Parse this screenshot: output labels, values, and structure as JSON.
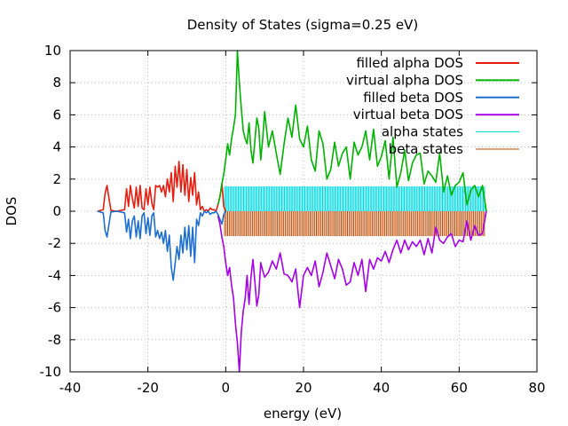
{
  "chart_data": {
    "type": "line",
    "title": "Density of States (sigma=0.25 eV)",
    "xlabel": "energy (eV)",
    "ylabel": "DOS",
    "xlim": [
      -40,
      80
    ],
    "ylim": [
      -10,
      10
    ],
    "x_ticks": [
      -40,
      -20,
      0,
      20,
      40,
      60,
      80
    ],
    "y_ticks": [
      -10,
      -8,
      -6,
      -4,
      -2,
      0,
      2,
      4,
      6,
      8,
      10
    ],
    "x_tick_labels": [
      "-40",
      "-20",
      "0",
      "20",
      "40",
      "60",
      "80"
    ],
    "y_tick_labels": [
      "-10",
      "-8",
      "-6",
      "-4",
      "-2",
      "0",
      "2",
      "4",
      "6",
      "8",
      "10"
    ],
    "grid": true,
    "legend_position": "top-right",
    "series": [
      {
        "name": "filled alpha DOS",
        "color": "#e51e10",
        "x": [
          -33,
          -31.5,
          -31,
          -30.5,
          -30,
          -29.5,
          -28,
          -26,
          -25.5,
          -25,
          -24.5,
          -24,
          -23.5,
          -23,
          -22.5,
          -22,
          -21.5,
          -21,
          -20.5,
          -20,
          -19.5,
          -19,
          -18.5,
          -18,
          -17.5,
          -17,
          -16.5,
          -16,
          -15.5,
          -15,
          -14.5,
          -14,
          -13.5,
          -13,
          -12.5,
          -12,
          -11.5,
          -11,
          -10.5,
          -10,
          -9.5,
          -9,
          -8.5,
          -8,
          -7.5,
          -7,
          -6.5,
          -6,
          -5.5,
          -5,
          -4.5,
          -4,
          -3.5,
          -3,
          -2.5,
          -2,
          -1.5,
          -1,
          -0.5,
          0
        ],
        "y": [
          0,
          0.1,
          1.1,
          1.6,
          0.8,
          0.05,
          0,
          0.1,
          1.4,
          0.3,
          1.6,
          0.8,
          0.2,
          1.5,
          0.3,
          1.6,
          0.2,
          0.1,
          1.4,
          0.4,
          1.5,
          0.5,
          0.1,
          1.6,
          1.5,
          1.6,
          1.2,
          1.6,
          0.9,
          2.0,
          1.2,
          2.4,
          0.6,
          2.8,
          1.5,
          3.1,
          1.2,
          2.9,
          1.0,
          2.6,
          0.6,
          2.1,
          1.0,
          2.4,
          0.4,
          1.2,
          0.1,
          0.3,
          0,
          0.1,
          0,
          0.2,
          0.1,
          0.1,
          0,
          0.4,
          0.9,
          1.7,
          0.3,
          0
        ]
      },
      {
        "name": "virtual alpha DOS",
        "color": "#00b200",
        "x": [
          -2,
          -1.5,
          -1,
          -0.5,
          0,
          0.5,
          1,
          1.5,
          2,
          2.5,
          3,
          3.5,
          4,
          4.5,
          5,
          5.5,
          6,
          6.5,
          7,
          7.5,
          8,
          8.5,
          9,
          9.5,
          10,
          11,
          12,
          13,
          14,
          15,
          16,
          17,
          18,
          19,
          20,
          21,
          22,
          23,
          24,
          25,
          26,
          27,
          28,
          29,
          30,
          31,
          32,
          33,
          34,
          35,
          36,
          37,
          38,
          39,
          40,
          41,
          42,
          43,
          44,
          45,
          46,
          47,
          48,
          49,
          50,
          51,
          52,
          53,
          54,
          55,
          56,
          57,
          58,
          59,
          60,
          61,
          62,
          63,
          64,
          65,
          66,
          67
        ],
        "y": [
          0.4,
          0.9,
          1.7,
          2.3,
          3.2,
          4.2,
          3.5,
          4.5,
          5.2,
          6.0,
          10.0,
          8.0,
          6.4,
          5.0,
          4.5,
          4.2,
          5.5,
          3.8,
          3.0,
          4.4,
          5.8,
          5.2,
          3.2,
          4.5,
          6.2,
          4.0,
          5.0,
          3.6,
          2.3,
          4.2,
          5.8,
          4.6,
          6.6,
          4.5,
          4.0,
          5.3,
          3.2,
          2.5,
          5.0,
          4.2,
          2.0,
          2.6,
          4.3,
          2.8,
          3.6,
          4.0,
          2.0,
          4.3,
          3.5,
          4.0,
          5.0,
          3.2,
          5.1,
          2.8,
          3.4,
          4.4,
          2.0,
          4.6,
          1.5,
          2.4,
          3.8,
          1.9,
          3.0,
          3.5,
          3.6,
          1.7,
          2.5,
          2.2,
          1.8,
          3.6,
          1.2,
          2.2,
          1.0,
          1.6,
          1.8,
          2.4,
          0.4,
          1.3,
          1.6,
          0.9,
          1.6,
          0
        ]
      },
      {
        "name": "filled beta DOS",
        "color": "#1e6fd0",
        "x": [
          -33,
          -31.5,
          -31,
          -30.5,
          -30,
          -29.5,
          -28,
          -26,
          -25.5,
          -25,
          -24.5,
          -24,
          -23.5,
          -23,
          -22.5,
          -22,
          -21.5,
          -21,
          -20.5,
          -20,
          -19.5,
          -19,
          -18.5,
          -18,
          -17.5,
          -17,
          -16.5,
          -16,
          -15.5,
          -15,
          -14.5,
          -14,
          -13.5,
          -13,
          -12.5,
          -12,
          -11.5,
          -11,
          -10.5,
          -10,
          -9.5,
          -9,
          -8.5,
          -8,
          -7.5,
          -7,
          -6.5,
          -6,
          -5.5,
          -5,
          -4.5,
          -4,
          -3.5,
          -3,
          -2.5,
          -2,
          -1.5,
          -1,
          -0.5,
          0
        ],
        "y": [
          0,
          -0.1,
          -1.2,
          -1.6,
          -0.8,
          -0.05,
          0,
          -0.1,
          -1.3,
          -0.5,
          -1.7,
          -0.6,
          -0.3,
          -1.6,
          -0.6,
          -1.7,
          -0.3,
          -0.1,
          -1.4,
          -0.4,
          -1.5,
          -0.3,
          -0.1,
          -1.6,
          -1.2,
          -1.7,
          -1.3,
          -2.0,
          -1.2,
          -2.5,
          -1.5,
          -3.5,
          -4.3,
          -3.2,
          -2.2,
          -3.0,
          -1.5,
          -2.6,
          -1.0,
          -2.4,
          -0.9,
          -2.8,
          -1.0,
          -3.2,
          -0.5,
          -0.9,
          -0.1,
          -0.3,
          0,
          -0.1,
          0,
          -0.2,
          -0.1,
          -0.1,
          0,
          -0.2,
          -0.5,
          -0.8,
          -0.2,
          0
        ]
      },
      {
        "name": "virtual beta DOS",
        "color": "#a500e6",
        "x": [
          -2,
          -1.5,
          -1,
          -0.5,
          0,
          0.5,
          1,
          1.5,
          2,
          2.5,
          3,
          3.5,
          4,
          4.5,
          5,
          5.5,
          6,
          6.5,
          7,
          7.5,
          8,
          8.5,
          9,
          9.5,
          10,
          11,
          12,
          13,
          14,
          15,
          16,
          17,
          18,
          19,
          20,
          21,
          22,
          23,
          24,
          25,
          26,
          27,
          28,
          29,
          30,
          31,
          32,
          33,
          34,
          35,
          36,
          37,
          38,
          39,
          40,
          41,
          42,
          43,
          44,
          45,
          46,
          47,
          48,
          49,
          50,
          51,
          52,
          53,
          54,
          55,
          56,
          57,
          58,
          59,
          60,
          61,
          62,
          63,
          64,
          65,
          66,
          67
        ],
        "y": [
          -0.3,
          -0.8,
          -1.6,
          -2.2,
          -3.2,
          -4.0,
          -3.5,
          -4.6,
          -5.4,
          -7.0,
          -8.2,
          -10.0,
          -7.5,
          -6.2,
          -5.4,
          -4.0,
          -5.8,
          -4.1,
          -3.0,
          -4.4,
          -5.9,
          -5.2,
          -3.2,
          -3.7,
          -4.1,
          -3.8,
          -3.1,
          -3.6,
          -2.6,
          -3.9,
          -4.0,
          -4.4,
          -3.6,
          -6.0,
          -4.0,
          -3.5,
          -4.0,
          -3.1,
          -4.7,
          -3.8,
          -2.6,
          -3.4,
          -4.2,
          -3.0,
          -3.6,
          -4.6,
          -4.4,
          -3.2,
          -4.0,
          -3.0,
          -5.0,
          -3.0,
          -3.6,
          -2.9,
          -3.1,
          -2.5,
          -3.2,
          -2.4,
          -1.8,
          -2.6,
          -1.8,
          -2.4,
          -1.9,
          -2.2,
          -1.8,
          -2.7,
          -1.7,
          -2.6,
          -1.0,
          -1.8,
          -2.0,
          -1.6,
          -1.4,
          -2.2,
          -1.8,
          -1.9,
          -0.6,
          -1.8,
          -0.9,
          -1.5,
          -1.4,
          0
        ]
      },
      {
        "name": "alpha states",
        "color": "#00d8e0",
        "type": "impulses",
        "height": 1.55,
        "x_range": [
          -0.3,
          66.8
        ],
        "step": 0.35
      },
      {
        "name": "beta states",
        "color": "#c24a00",
        "type": "impulses",
        "height": -1.55,
        "x_range": [
          -0.3,
          66.8
        ],
        "step": 0.4
      }
    ]
  }
}
